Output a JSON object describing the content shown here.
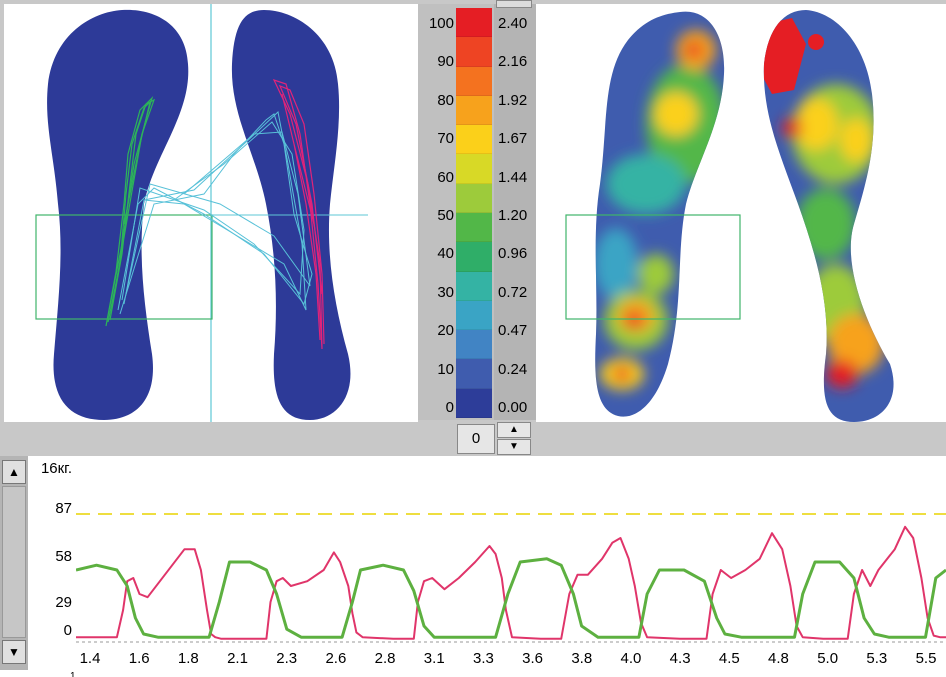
{
  "color_scale": {
    "percent_labels": [
      "100",
      "90",
      "80",
      "70",
      "60",
      "50",
      "40",
      "30",
      "20",
      "10",
      "0"
    ],
    "value_labels": [
      "2.40",
      "2.16",
      "1.92",
      "1.67",
      "1.44",
      "1.20",
      "0.96",
      "0.72",
      "0.47",
      "0.24",
      "0.00"
    ],
    "colors": [
      "#e51e24",
      "#ee4423",
      "#f4721f",
      "#f7a21c",
      "#fbd01a",
      "#d8d926",
      "#9dcb3b",
      "#52b748",
      "#2fae68",
      "#34b3a4",
      "#3aa4c5",
      "#4184c4",
      "#3f5cae",
      "#2d3d99"
    ]
  },
  "counter": {
    "value": "0"
  },
  "icons": {
    "spin_up": "▲",
    "spin_down": "▼",
    "scroll_up": "▲",
    "scroll_down": "▼"
  },
  "footer_glyph": "1",
  "chart_data": {
    "type": "line",
    "ylabel": "16кг.",
    "y_ticks": [
      "87",
      "58",
      "29",
      "0"
    ],
    "ylim": [
      0,
      110
    ],
    "threshold": 80,
    "threshold_color": "#e8d400",
    "x_tick_labels": [
      "1.4",
      "1.6",
      "1.8",
      "2.1",
      "2.3",
      "2.6",
      "2.8",
      "3.1",
      "3.3",
      "3.6",
      "3.8",
      "4.0",
      "4.3",
      "4.5",
      "4.8",
      "5.0",
      "5.3",
      "5.5"
    ],
    "xlim": [
      1.35,
      5.6
    ],
    "series": [
      {
        "color": "#e0356a",
        "x": [
          1.35,
          1.55,
          1.58,
          1.6,
          1.63,
          1.66,
          1.7,
          1.76,
          1.82,
          1.88,
          1.93,
          1.96,
          1.99,
          2.01,
          2.03,
          2.06,
          2.2,
          2.28,
          2.3,
          2.33,
          2.36,
          2.4,
          2.48,
          2.56,
          2.61,
          2.64,
          2.68,
          2.7,
          2.72,
          2.75,
          2.9,
          3.0,
          3.02,
          3.05,
          3.09,
          3.15,
          3.22,
          3.3,
          3.37,
          3.4,
          3.43,
          3.45,
          3.48,
          3.62,
          3.72,
          3.76,
          3.8,
          3.85,
          3.92,
          3.97,
          4.01,
          4.05,
          4.08,
          4.11,
          4.14,
          4.3,
          4.43,
          4.46,
          4.5,
          4.55,
          4.62,
          4.69,
          4.75,
          4.8,
          4.84,
          4.87,
          4.9,
          5.0,
          5.12,
          5.15,
          5.19,
          5.23,
          5.27,
          5.35,
          5.4,
          5.44,
          5.48,
          5.51,
          5.54,
          5.57,
          5.6
        ],
        "y": [
          3,
          3,
          20,
          38,
          40,
          30,
          28,
          38,
          48,
          58,
          58,
          45,
          20,
          5,
          3,
          2,
          2,
          2,
          25,
          38,
          40,
          35,
          38,
          45,
          56,
          50,
          35,
          18,
          6,
          3,
          2,
          2,
          25,
          38,
          40,
          33,
          40,
          50,
          60,
          55,
          40,
          20,
          3,
          2,
          2,
          30,
          42,
          42,
          52,
          62,
          65,
          52,
          35,
          12,
          3,
          2,
          2,
          30,
          45,
          40,
          45,
          52,
          68,
          58,
          35,
          10,
          3,
          2,
          2,
          30,
          45,
          35,
          45,
          58,
          72,
          65,
          40,
          15,
          4,
          3,
          3
        ]
      },
      {
        "color": "#5db040",
        "x": [
          1.35,
          1.45,
          1.55,
          1.6,
          1.64,
          1.68,
          1.75,
          2.0,
          2.05,
          2.1,
          2.2,
          2.28,
          2.33,
          2.38,
          2.45,
          2.65,
          2.7,
          2.74,
          2.85,
          2.95,
          3.0,
          3.05,
          3.1,
          3.2,
          3.4,
          3.46,
          3.52,
          3.65,
          3.72,
          3.78,
          3.82,
          3.9,
          4.1,
          4.14,
          4.2,
          4.32,
          4.42,
          4.48,
          4.52,
          4.6,
          4.86,
          4.9,
          4.96,
          5.08,
          5.15,
          5.2,
          5.25,
          5.32,
          5.5,
          5.55,
          5.6
        ],
        "y": [
          45,
          48,
          45,
          35,
          15,
          5,
          3,
          3,
          25,
          50,
          50,
          45,
          30,
          8,
          3,
          3,
          25,
          45,
          48,
          45,
          32,
          10,
          3,
          3,
          3,
          30,
          50,
          52,
          48,
          30,
          10,
          3,
          3,
          30,
          45,
          45,
          38,
          15,
          5,
          3,
          3,
          30,
          50,
          50,
          40,
          15,
          5,
          3,
          3,
          40,
          45
        ]
      }
    ]
  }
}
